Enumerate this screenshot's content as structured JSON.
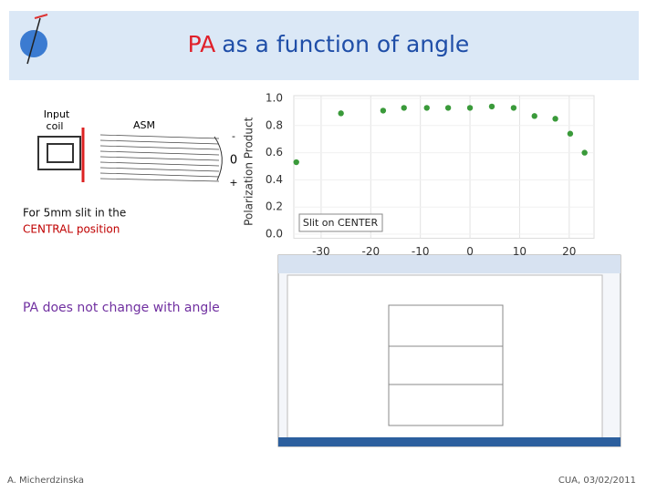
{
  "title": {
    "highlight": "PA",
    "rest": "as a function of angle"
  },
  "diagram": {
    "input_coil": [
      "Input",
      "coil"
    ],
    "asm": "ASM",
    "angle_marks": [
      "-",
      "0",
      "+"
    ]
  },
  "note": {
    "line1": "For 5mm slit in the",
    "line2": "CENTRAL position"
  },
  "conclusion": "PA does not change with angle",
  "footer": {
    "author": "A. Micherdzinska",
    "date": "CUA, 03/02/2011"
  },
  "chart_data": {
    "type": "scatter",
    "y_label": "Polarization Product",
    "x": [
      -35,
      -26,
      -17.5,
      -13.3,
      -8.7,
      -4.4,
      0,
      4.4,
      8.8,
      13,
      17.2,
      20.2,
      23.1
    ],
    "series": [
      {
        "name": "Slit on CENTER",
        "color": "#3a9a3a",
        "values": [
          0.53,
          0.89,
          0.91,
          0.93,
          0.93,
          0.93,
          0.93,
          0.94,
          0.93,
          0.87,
          0.85,
          0.74,
          0.6
        ]
      }
    ],
    "xlim": [
      -35.5,
      25
    ],
    "ylim": [
      -0.03,
      1.02
    ],
    "xticks": [
      -30,
      -20,
      -10,
      0,
      10,
      20
    ],
    "yticks": [
      {
        "value": 0,
        "label": "0.0"
      },
      0.2,
      0.4,
      0.6,
      0.8,
      {
        "value": 1,
        "label": "1.0"
      }
    ],
    "grid": true
  }
}
